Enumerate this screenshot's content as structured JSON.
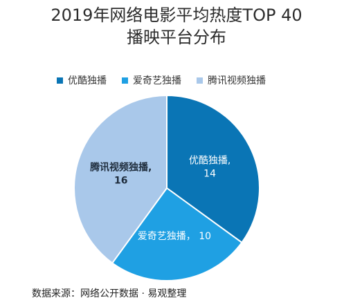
{
  "title_line1": "2019年网络电影平均热度TOP 40",
  "title_line2": "播映平台分布",
  "source": "数据来源：网络公开数据 · 易观整理",
  "chart_data": {
    "type": "pie",
    "title": "2019年网络电影平均热度TOP 40 播映平台分布",
    "categories": [
      "优酷独播",
      "爱奇艺独播",
      "腾讯视频独播"
    ],
    "values": [
      14,
      10,
      16
    ],
    "colors": [
      "#0a75b5",
      "#1fa0e3",
      "#a9c8ea"
    ],
    "data_labels": [
      {
        "name": "优酷独播,",
        "value": "14",
        "color": "#ffffff",
        "bold": false
      },
      {
        "name": "爱奇艺独播，",
        "value": "10",
        "color": "#ffffff",
        "bold": false
      },
      {
        "name": "腾讯视频独播,",
        "value": "16",
        "color": "#1f2d3d",
        "bold": true
      }
    ],
    "legend_position": "top"
  }
}
